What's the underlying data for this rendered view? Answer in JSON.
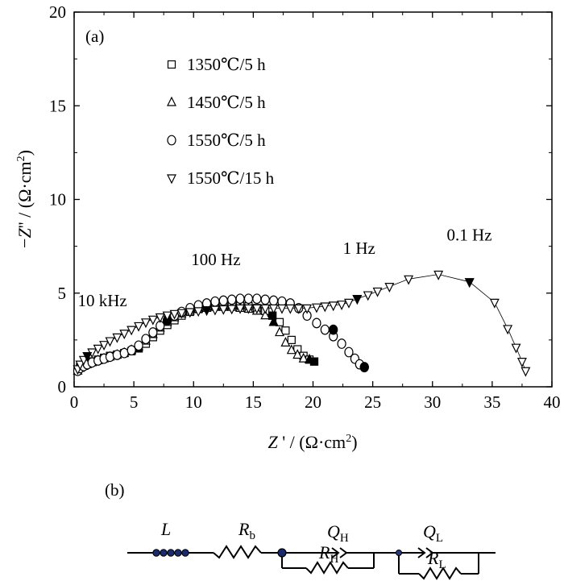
{
  "chart_data": {
    "type": "scatter",
    "panel_label": "(a)",
    "xlabel": "Z ' / (Ω·cm2)",
    "ylabel": "−Z'' / (Ω·cm2)",
    "xlim": [
      0,
      40
    ],
    "ylim": [
      0,
      20
    ],
    "x_ticks": [
      "0",
      "5",
      "10",
      "15",
      "20",
      "25",
      "30",
      "35",
      "40"
    ],
    "y_ticks": [
      "0",
      "5",
      "10",
      "15",
      "20"
    ],
    "legend_position": "top-left",
    "series": [
      {
        "name": "1350℃/5 h",
        "marker": "square",
        "x": [
          0.3,
          0.5,
          0.8,
          1.1,
          1.5,
          2.0,
          2.5,
          3.0,
          3.6,
          4.2,
          4.8,
          5.4,
          6.0,
          6.6,
          7.2,
          7.8,
          8.4,
          9.0,
          9.7,
          10.4,
          11.1,
          11.8,
          12.5,
          13.2,
          13.9,
          14.6,
          15.3,
          16.0,
          16.6,
          17.2,
          17.7,
          18.2,
          18.7,
          19.2,
          19.7,
          20.1
        ],
        "y": [
          0.9,
          1.05,
          1.15,
          1.25,
          1.35,
          1.45,
          1.55,
          1.65,
          1.72,
          1.8,
          1.9,
          2.05,
          2.3,
          2.65,
          3.0,
          3.3,
          3.55,
          3.8,
          4.0,
          4.15,
          4.25,
          4.3,
          4.35,
          4.35,
          4.35,
          4.3,
          4.2,
          4.05,
          3.8,
          3.45,
          3.0,
          2.5,
          2.0,
          1.65,
          1.45,
          1.35
        ],
        "filled_x": [
          5.4,
          16.6,
          20.1
        ],
        "filled_y": [
          2.05,
          3.8,
          1.35
        ]
      },
      {
        "name": "1450℃/5 h",
        "marker": "triangle-up",
        "x": [
          0.3,
          0.5,
          0.8,
          1.1,
          1.5,
          2.0,
          2.5,
          3.0,
          3.6,
          4.2,
          4.8,
          5.4,
          6.0,
          6.6,
          7.2,
          7.8,
          8.4,
          9.0,
          9.7,
          10.4,
          11.1,
          11.8,
          12.5,
          13.2,
          13.9,
          14.6,
          15.3,
          16.0,
          16.7,
          17.2,
          17.7,
          18.2,
          18.7,
          19.2,
          19.7
        ],
        "y": [
          0.85,
          1.0,
          1.1,
          1.2,
          1.3,
          1.4,
          1.5,
          1.6,
          1.7,
          1.8,
          1.95,
          2.15,
          2.45,
          2.8,
          3.15,
          3.45,
          3.7,
          3.9,
          4.05,
          4.15,
          4.2,
          4.25,
          4.25,
          4.25,
          4.2,
          4.15,
          4.05,
          3.8,
          3.45,
          2.9,
          2.35,
          1.95,
          1.7,
          1.5,
          1.45
        ],
        "filled_x": [
          4.8,
          16.7,
          19.7
        ],
        "filled_y": [
          1.95,
          3.45,
          1.45
        ]
      },
      {
        "name": "1550℃/5 h",
        "marker": "circle",
        "x": [
          0.3,
          0.5,
          0.8,
          1.1,
          1.5,
          2.0,
          2.5,
          3.0,
          3.6,
          4.2,
          4.8,
          5.4,
          6.0,
          6.6,
          7.2,
          7.8,
          8.4,
          9.0,
          9.7,
          10.4,
          11.1,
          11.8,
          12.5,
          13.2,
          13.9,
          14.6,
          15.3,
          16.0,
          16.7,
          17.4,
          18.1,
          18.8,
          19.5,
          20.3,
          21.0,
          21.7,
          22.4,
          23.0,
          23.5,
          23.9,
          24.3
        ],
        "y": [
          0.85,
          1.0,
          1.1,
          1.2,
          1.3,
          1.4,
          1.5,
          1.6,
          1.7,
          1.8,
          1.95,
          2.2,
          2.55,
          2.9,
          3.25,
          3.55,
          3.8,
          4.0,
          4.2,
          4.35,
          4.45,
          4.55,
          4.6,
          4.65,
          4.7,
          4.7,
          4.7,
          4.65,
          4.6,
          4.55,
          4.45,
          4.2,
          3.8,
          3.4,
          3.05,
          2.7,
          2.3,
          1.85,
          1.5,
          1.2,
          1.05
        ],
        "filled_x": [
          7.8,
          21.7,
          24.3
        ],
        "filled_y": [
          3.55,
          3.05,
          1.05
        ]
      },
      {
        "name": "1550℃/15 h",
        "marker": "triangle-down",
        "x": [
          0.3,
          0.5,
          0.8,
          1.1,
          1.5,
          2.0,
          2.5,
          3.0,
          3.6,
          4.2,
          4.8,
          5.4,
          6.0,
          6.6,
          7.2,
          7.8,
          8.4,
          9.0,
          9.7,
          10.4,
          11.1,
          11.8,
          12.5,
          13.2,
          13.9,
          14.6,
          15.3,
          16.0,
          16.7,
          17.4,
          18.1,
          18.8,
          19.5,
          20.3,
          21.0,
          21.7,
          22.4,
          23.0,
          23.7,
          24.6,
          25.4,
          26.4,
          28.0,
          30.5,
          33.1,
          35.2,
          36.3,
          37.0,
          37.5,
          37.8
        ],
        "y": [
          0.95,
          1.2,
          1.45,
          1.65,
          1.85,
          2.05,
          2.25,
          2.45,
          2.65,
          2.85,
          3.05,
          3.25,
          3.45,
          3.6,
          3.72,
          3.82,
          3.9,
          3.95,
          4.0,
          4.05,
          4.1,
          4.12,
          4.15,
          4.17,
          4.2,
          4.2,
          4.2,
          4.2,
          4.2,
          4.2,
          4.2,
          4.2,
          4.2,
          4.25,
          4.3,
          4.35,
          4.4,
          4.5,
          4.7,
          4.9,
          5.1,
          5.35,
          5.75,
          6.0,
          5.6,
          4.5,
          3.1,
          2.1,
          1.35,
          0.85
        ],
        "filled_x": [
          1.1,
          11.1,
          23.7,
          33.1
        ],
        "filled_y": [
          1.65,
          4.1,
          4.7,
          5.6
        ]
      }
    ],
    "annotations": [
      {
        "text": "10 kHz",
        "x": 0.3,
        "y": 4.3
      },
      {
        "text": "100 Hz",
        "x": 9.8,
        "y": 6.5
      },
      {
        "text": "1 Hz",
        "x": 22.5,
        "y": 7.1
      },
      {
        "text": "0.1 Hz",
        "x": 31.2,
        "y": 7.8
      }
    ]
  },
  "circuit": {
    "panel_label": "(b)",
    "elements": [
      {
        "symbol": "L",
        "sub": ""
      },
      {
        "symbol": "R",
        "sub": "b"
      },
      {
        "symbol": "Q",
        "sub": "H"
      },
      {
        "symbol": "R",
        "sub": "H"
      },
      {
        "symbol": "Q",
        "sub": "L"
      },
      {
        "symbol": "R",
        "sub": "L"
      }
    ]
  }
}
